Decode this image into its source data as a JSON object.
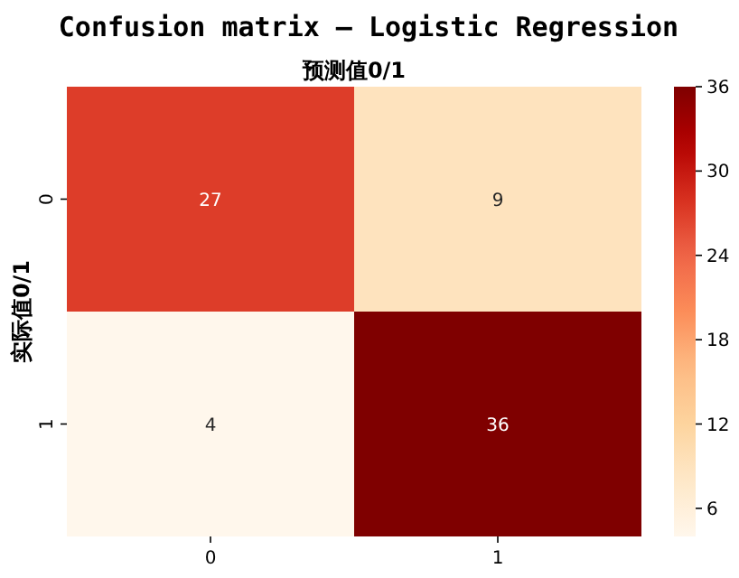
{
  "chart_data": {
    "type": "heatmap",
    "title": "Confusion matrix — Logistic Regression",
    "xlabel": "预测值0/1",
    "ylabel": "实际值0/1",
    "categories": [
      "0",
      "1"
    ],
    "y_categories": [
      "0",
      "1"
    ],
    "cells": [
      [
        27,
        9
      ],
      [
        4,
        36
      ]
    ],
    "clim": [
      4,
      36
    ],
    "cticks": [
      6,
      12,
      18,
      24,
      30,
      36
    ],
    "data_labels": true
  }
}
